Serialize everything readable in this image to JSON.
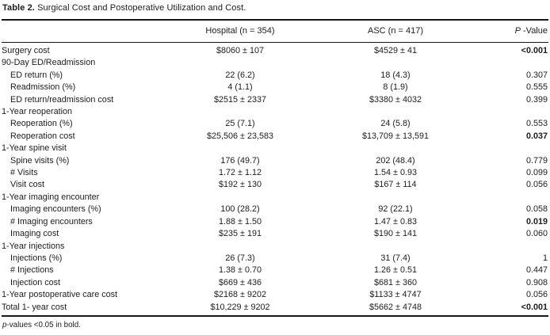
{
  "title": {
    "label_bold": "Table 2.",
    "label_rest": " Surgical Cost and Postoperative Utilization and Cost."
  },
  "table": {
    "headers": {
      "row_header": "",
      "hospital": "Hospital (n = 354)",
      "asc": "ASC (n = 417)",
      "p_italic": "P",
      "p_rest": " -Value"
    },
    "rows": [
      {
        "label": "Surgery cost",
        "indent": 0,
        "hospital": "$8060 ± 107",
        "asc": "$4529 ± 41",
        "p": "<0.001",
        "p_bold": true
      },
      {
        "label": "90-Day ED/Readmission",
        "indent": 0,
        "section": true
      },
      {
        "label": "ED return (%)",
        "indent": 1,
        "hospital": "22 (6.2)",
        "asc": "18 (4.3)",
        "p": "0.307"
      },
      {
        "label": "Readmission (%)",
        "indent": 1,
        "hospital": "4 (1.1)",
        "asc": "8 (1.9)",
        "p": "0.555"
      },
      {
        "label": "ED return/readmission cost",
        "indent": 1,
        "hospital": "$2515 ± 2337",
        "asc": "$3380 ± 4032",
        "p": "0.399"
      },
      {
        "label": "1-Year reoperation",
        "indent": 0,
        "section": true
      },
      {
        "label": "Reoperation (%)",
        "indent": 1,
        "hospital": "25 (7.1)",
        "asc": "24 (5.8)",
        "p": "0.553"
      },
      {
        "label": "Reoperation cost",
        "indent": 1,
        "hospital": "$25,506 ± 23,583",
        "asc": "$13,709 ± 13,591",
        "p": "0.037",
        "p_bold": true
      },
      {
        "label": "1-Year spine visit",
        "indent": 0,
        "section": true
      },
      {
        "label": "Spine visits (%)",
        "indent": 1,
        "hospital": "176 (49.7)",
        "asc": "202 (48.4)",
        "p": "0.779"
      },
      {
        "label": "# Visits",
        "indent": 1,
        "hospital": "1.72 ± 1.12",
        "asc": "1.54 ± 0.93",
        "p": "0.099"
      },
      {
        "label": "Visit cost",
        "indent": 1,
        "hospital": "$192 ± 130",
        "asc": "$167 ± 114",
        "p": "0.056"
      },
      {
        "label": "1-Year imaging encounter",
        "indent": 0,
        "section": true
      },
      {
        "label": "Imaging encounters (%)",
        "indent": 1,
        "hospital": "100 (28.2)",
        "asc": "92 (22.1)",
        "p": "0.058"
      },
      {
        "label": "# Imaging encounters",
        "indent": 1,
        "hospital": "1.88 ± 1.50",
        "asc": "1.47 ± 0.83",
        "p": "0.019",
        "p_bold": true
      },
      {
        "label": "Imaging cost",
        "indent": 1,
        "hospital": "$235 ± 191",
        "asc": "$190 ± 141",
        "p": "0.060"
      },
      {
        "label": "1-Year injections",
        "indent": 0,
        "section": true
      },
      {
        "label": "Injections (%)",
        "indent": 1,
        "hospital": "26 (7.3)",
        "asc": "31 (7.4)",
        "p": "1"
      },
      {
        "label": "# Injections",
        "indent": 1,
        "hospital": "1.38 ± 0.70",
        "asc": "1.26 ± 0.51",
        "p": "0.447"
      },
      {
        "label": "Injection cost",
        "indent": 1,
        "hospital": "$669 ± 436",
        "asc": "$681 ± 360",
        "p": "0.908"
      },
      {
        "label": "1-Year postoperative care cost",
        "indent": 0,
        "hospital": "$2168 ± 9202",
        "asc": "$1133 ± 4747",
        "p": "0.056"
      },
      {
        "label": "Total 1- year cost",
        "indent": 0,
        "hospital": "$10,229 ± 9202",
        "asc": "$5662 ± 4748",
        "p": "<0.001",
        "p_bold": true
      }
    ]
  },
  "footnote": {
    "p_italic": "p",
    "rest": "-values <0.05 in bold."
  },
  "colors": {
    "text": "#1c1c1c",
    "rule": "#161616",
    "background": "#ffffff"
  }
}
